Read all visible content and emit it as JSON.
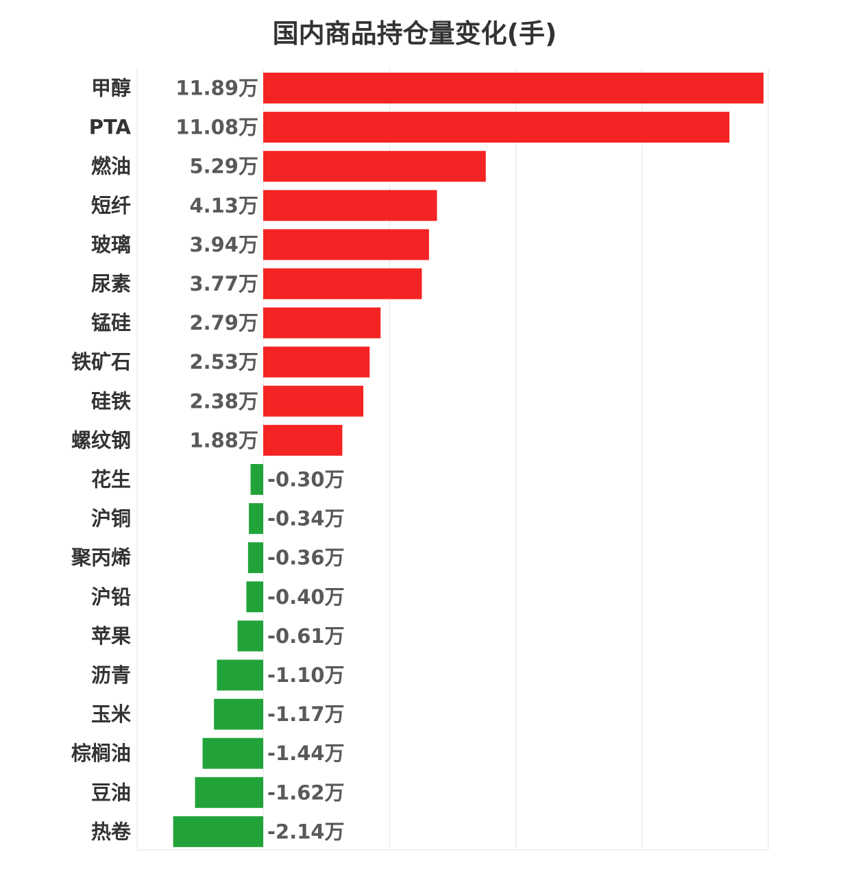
{
  "chart_data": {
    "type": "bar",
    "orientation": "horizontal",
    "title": "国内商品持仓量变化(手)",
    "xlabel": "",
    "ylabel": "",
    "unit_suffix": "万",
    "xlim": [
      -3,
      12
    ],
    "grid": true,
    "legend": "none",
    "categories": [
      "甲醇",
      "PTA",
      "燃油",
      "短纤",
      "玻璃",
      "尿素",
      "锰硅",
      "铁矿石",
      "硅铁",
      "螺纹钢",
      "花生",
      "沪铜",
      "聚丙烯",
      "沪铅",
      "苹果",
      "沥青",
      "玉米",
      "棕榈油",
      "豆油",
      "热卷"
    ],
    "values": [
      11.89,
      11.08,
      5.29,
      4.13,
      3.94,
      3.77,
      2.79,
      2.53,
      2.38,
      1.88,
      -0.3,
      -0.34,
      -0.36,
      -0.4,
      -0.61,
      -1.1,
      -1.17,
      -1.44,
      -1.62,
      -2.14
    ],
    "value_labels": [
      "11.89万",
      "11.08万",
      "5.29万",
      "4.13万",
      "3.94万",
      "3.77万",
      "2.79万",
      "2.53万",
      "2.38万",
      "1.88万",
      "-0.30万",
      "-0.34万",
      "-0.36万",
      "-0.40万",
      "-0.61万",
      "-1.10万",
      "-1.17万",
      "-1.44万",
      "-1.62万",
      "-2.14万"
    ],
    "colors": {
      "positive": "#f52424",
      "negative": "#22a33a",
      "grid": "#e6e6e6"
    }
  }
}
